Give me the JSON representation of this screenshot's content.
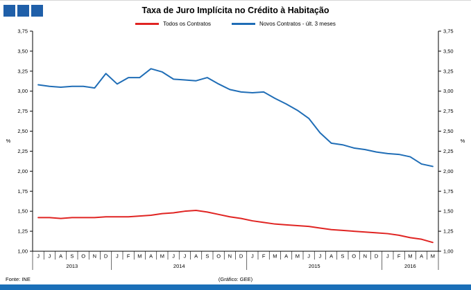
{
  "title": "Taxa de Juro Implícita no Crédito à Habitação",
  "logo": {
    "color": "#1f5fa9",
    "squares": 3
  },
  "legend": [
    {
      "label": "Todos os Contratos",
      "color": "#e02422"
    },
    {
      "label": "Novos Contratos - últ. 3 meses",
      "color": "#1f6db6"
    }
  ],
  "footer": {
    "source": "Fonte: INE",
    "credit": "(Gráfico: GEE)",
    "bar_color": "#1a6fb8"
  },
  "chart_data": {
    "type": "line",
    "title": "Taxa de Juro Implícita no Crédito à Habitação",
    "ylabel_left": "%",
    "ylabel_right": "%",
    "ylim": [
      1.0,
      3.75
    ],
    "ytick_step": 0.25,
    "grid": false,
    "legend_position": "top",
    "categories": [
      "J",
      "J",
      "A",
      "S",
      "O",
      "N",
      "D",
      "J",
      "F",
      "M",
      "A",
      "M",
      "J",
      "J",
      "A",
      "S",
      "O",
      "N",
      "D",
      "J",
      "F",
      "M",
      "A",
      "M",
      "J",
      "J",
      "A",
      "S",
      "O",
      "N",
      "D",
      "J",
      "F",
      "M",
      "A",
      "M"
    ],
    "year_groups": [
      {
        "label": "2013",
        "start": 0,
        "end": 7
      },
      {
        "label": "2014",
        "start": 7,
        "end": 19
      },
      {
        "label": "2015",
        "start": 19,
        "end": 31
      },
      {
        "label": "2016",
        "start": 31,
        "end": 36
      }
    ],
    "series": [
      {
        "name": "Todos os Contratos",
        "color": "#e02422",
        "values": [
          1.42,
          1.42,
          1.41,
          1.42,
          1.42,
          1.42,
          1.43,
          1.43,
          1.43,
          1.44,
          1.45,
          1.47,
          1.48,
          1.5,
          1.51,
          1.49,
          1.46,
          1.43,
          1.41,
          1.38,
          1.36,
          1.34,
          1.33,
          1.32,
          1.31,
          1.29,
          1.27,
          1.26,
          1.25,
          1.24,
          1.23,
          1.22,
          1.2,
          1.17,
          1.15,
          1.11
        ]
      },
      {
        "name": "Novos Contratos - últ. 3 meses",
        "color": "#1f6db6",
        "values": [
          3.08,
          3.06,
          3.05,
          3.06,
          3.06,
          3.04,
          3.22,
          3.09,
          3.17,
          3.17,
          3.28,
          3.24,
          3.15,
          3.14,
          3.13,
          3.17,
          3.09,
          3.02,
          2.99,
          2.98,
          2.99,
          2.91,
          2.84,
          2.76,
          2.66,
          2.48,
          2.35,
          2.33,
          2.29,
          2.27,
          2.24,
          2.22,
          2.21,
          2.18,
          2.09,
          2.06
        ]
      }
    ]
  }
}
